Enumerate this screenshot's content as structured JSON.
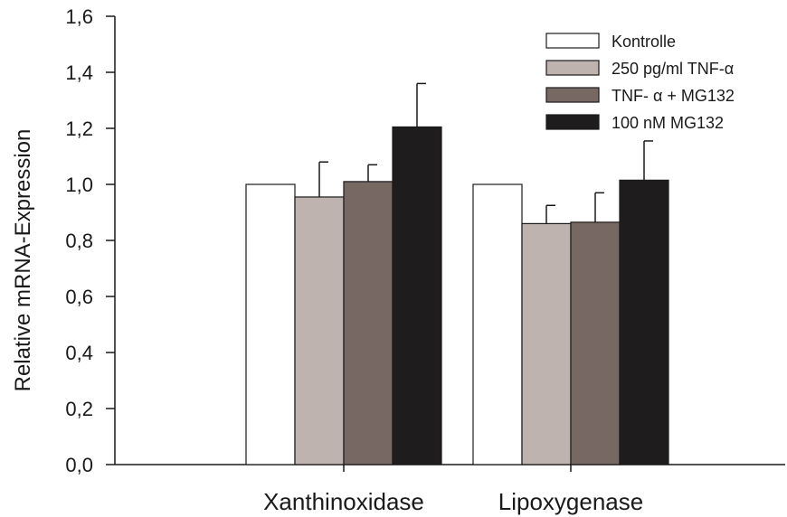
{
  "chart_data": {
    "type": "bar",
    "ylabel": "Relative mRNA-Expression",
    "xlabel": "",
    "ylim": [
      0,
      1.6
    ],
    "yticks": [
      0.0,
      0.2,
      0.4,
      0.6,
      0.8,
      1.0,
      1.2,
      1.4,
      1.6
    ],
    "ytick_labels": [
      "0,0",
      "0,2",
      "0,4",
      "0,6",
      "0,8",
      "1,0",
      "1,2",
      "1,4",
      "1,6"
    ],
    "categories": [
      "Xanthinoxidase",
      "Lipoxygenase"
    ],
    "series": [
      {
        "name": "Kontrolle",
        "color": "#ffffff",
        "values": [
          1.0,
          1.0
        ],
        "errors": [
          0,
          0
        ]
      },
      {
        "name": "250 pg/ml TNF-α",
        "color": "#bfb3b0",
        "values": [
          0.955,
          0.86
        ],
        "errors": [
          0.125,
          0.065
        ]
      },
      {
        "name": "TNF- α + MG132",
        "color": "#786864",
        "values": [
          1.01,
          0.865
        ],
        "errors": [
          0.06,
          0.105
        ]
      },
      {
        "name": "100 nM MG132",
        "color": "#1f1c1d",
        "values": [
          1.205,
          1.015
        ],
        "errors": [
          0.155,
          0.14
        ]
      }
    ],
    "legend_position": "top-right",
    "grid": false
  }
}
